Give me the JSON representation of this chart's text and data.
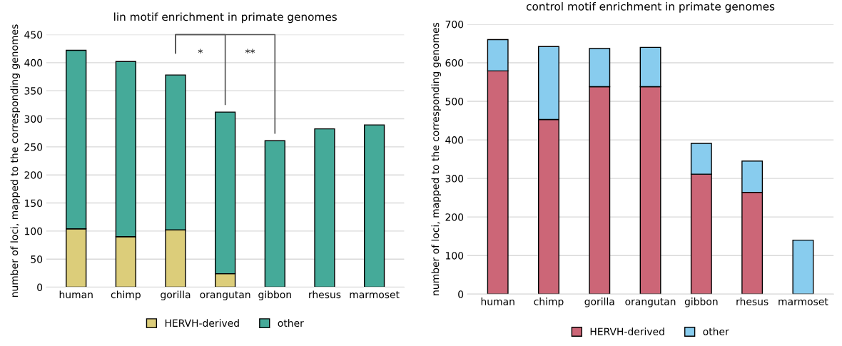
{
  "chart_data": [
    {
      "type": "bar",
      "title": "lin motif enrichment in primate genomes",
      "ylabel": "number of loci, mapped to the corresponding genomes",
      "categories": [
        "human",
        "chimp",
        "gorilla",
        "orangutan",
        "gibbon",
        "rhesus",
        "marmoset"
      ],
      "stacked": true,
      "series": [
        {
          "name": "HERVH-derived",
          "color": "#dccd7a",
          "values": [
            104,
            90,
            102,
            24,
            0,
            0,
            0
          ]
        },
        {
          "name": "other",
          "color": "#45aa99",
          "values": [
            318,
            312,
            276,
            288,
            261,
            282,
            289
          ]
        }
      ],
      "ylim": [
        0,
        450
      ],
      "yticks": [
        0,
        50,
        100,
        150,
        200,
        250,
        300,
        350,
        400,
        450
      ],
      "grid": "y",
      "legend": "bottom",
      "annotations": [
        "*",
        "**"
      ]
    },
    {
      "type": "bar",
      "title": "control motif enrichment in primate genomes",
      "ylabel": "number of loci, mapped to the corresponding genomes",
      "categories": [
        "human",
        "chimp",
        "gorilla",
        "orangutan",
        "gibbon",
        "rhesus",
        "marmoset"
      ],
      "stacked": true,
      "series": [
        {
          "name": "HERVH-derived",
          "color": "#cc6677",
          "values": [
            579,
            453,
            538,
            538,
            311,
            264,
            0
          ]
        },
        {
          "name": "other",
          "color": "#88ccee",
          "values": [
            81,
            189,
            99,
            102,
            80,
            81,
            140
          ]
        }
      ],
      "ylim": [
        0,
        700
      ],
      "yticks": [
        0,
        100,
        200,
        300,
        400,
        500,
        600,
        700
      ],
      "grid": "y",
      "legend": "bottom"
    }
  ]
}
